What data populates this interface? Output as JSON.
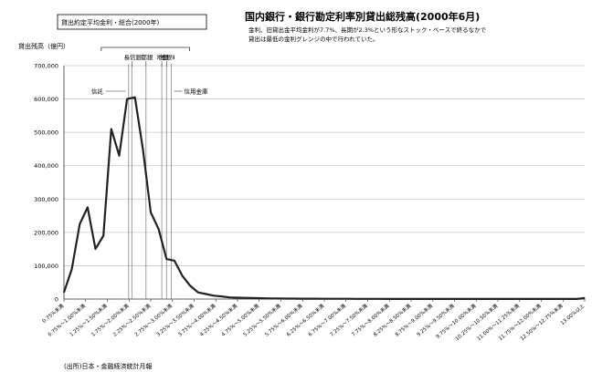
{
  "chart_data": {
    "type": "line",
    "title": "国内銀行・銀行勘定利率別貸出総残高(2000年6月)",
    "subtitle": [
      "金利、旧貸出金平均金利が7.7%、長期が2.3%という形なストック・ベースで終るなかで",
      "貸出は最低の金利グレンジの中で行われていた。"
    ],
    "legend_box": "貸出約定平均金利・総合(2000年)",
    "ylabel": "貸出残高（億円）",
    "source": "(出所)日本・金融経済統計月報",
    "ylim": [
      0,
      700000
    ],
    "yticks": [
      "0",
      "100,000",
      "200,000",
      "300,000",
      "400,000",
      "500,000",
      "600,000",
      "700,000"
    ],
    "xticks": [
      "0.75%未満",
      "0.75%～1.00%未満",
      "1.25%～1.50%未満",
      "1.75%～2.00%未満",
      "2.25%～2.50%未満",
      "2.75%～3.00%未満",
      "3.25%～3.50%未満",
      "3.75%～4.00%未満",
      "4.25%～4.50%未満",
      "4.75%～5.00%未満",
      "5.25%～5.50%未満",
      "5.75%～6.00%未満",
      "6.25%～6.50%未満",
      "6.75%～7.00%未満",
      "7.25%～7.50%未満",
      "7.75%～8.00%未満",
      "8.25%～8.50%未満",
      "8.75%～9.00%未満",
      "9.25%～9.50%未満",
      "9.75%～10.00%未満",
      "10.25%～10.50%未満",
      "11.00%～11.25%未満",
      "11.75%～12.00%未満",
      "12.50%～12.75%未満",
      "13.00%以上"
    ],
    "values": [
      20000,
      90000,
      225000,
      275000,
      150000,
      190000,
      510000,
      430000,
      600000,
      605000,
      450000,
      260000,
      210000,
      120000,
      115000,
      70000,
      40000,
      20000,
      15000,
      10000,
      8000,
      5000,
      4000,
      3500,
      3000,
      2500,
      2000,
      2000,
      1500,
      1500,
      1200,
      1000,
      1000,
      800,
      800,
      700,
      700,
      600,
      600,
      500,
      500,
      400,
      400,
      400,
      300,
      300,
      300,
      300,
      300,
      300,
      300,
      300,
      300,
      300,
      300,
      300,
      300,
      300,
      300,
      300,
      300,
      300,
      300,
      300,
      300,
      300,
      3000
    ],
    "markers": [
      {
        "label": "信託",
        "x_index": 8.2,
        "label_row": 1
      },
      {
        "label": "長信銀",
        "x_index": 8.6,
        "label_row": 0
      },
      {
        "label": "都銀",
        "x_index": 10.4,
        "label_row": 0
      },
      {
        "label": "地銀",
        "x_index": 12.4,
        "label_row": 0
      },
      {
        "label": "地銀Ⅱ",
        "x_index": 13.0,
        "label_row": 0
      },
      {
        "label": "信用金庫",
        "x_index": 13.6,
        "label_row": 1
      }
    ],
    "grid": true,
    "colors": {
      "line": "#222222",
      "grid": "#c8c8c8",
      "marker": "#777777"
    }
  }
}
